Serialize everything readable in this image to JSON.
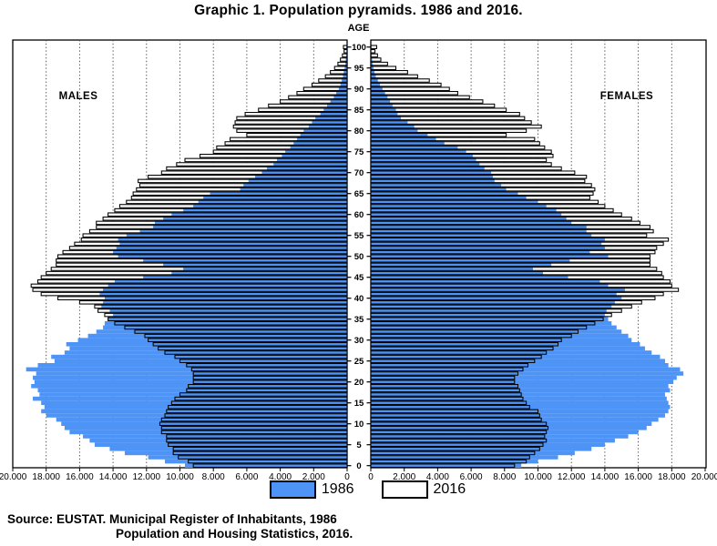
{
  "title": "Graphic 1. Population pyramids. 1986 and 2016.",
  "legend": {
    "items": [
      {
        "label": "1986",
        "swatch": "blue"
      },
      {
        "label": "2016",
        "swatch": "white"
      }
    ]
  },
  "source": {
    "line1": "Source: EUSTAT. Municipal Register of Inhabitants, 1986",
    "line2": "Population and Housing Statistics, 2016."
  },
  "colors": {
    "bar_1986": "#4d94f6",
    "bar_2016_fill": "#ffffff",
    "outline": "#000000",
    "gridline": "#444444"
  },
  "axis": {
    "left_ticks": [
      {
        "label": "20.000",
        "value": 20000
      },
      {
        "label": "18.000",
        "value": 18000
      },
      {
        "label": "16.000",
        "value": 16000
      },
      {
        "label": "14.000",
        "value": 14000
      },
      {
        "label": "12.000",
        "value": 12000
      },
      {
        "label": "10.000",
        "value": 10000
      },
      {
        "label": "8.000",
        "value": 8000
      },
      {
        "label": "6.000",
        "value": 6000
      },
      {
        "label": "4.000",
        "value": 4000
      },
      {
        "label": "2.000",
        "value": 2000
      },
      {
        "label": "0",
        "value": 0
      }
    ],
    "right_ticks": [
      {
        "label": "0",
        "value": 0
      },
      {
        "label": "2.000",
        "value": 2000
      },
      {
        "label": "4.000",
        "value": 4000
      },
      {
        "label": "6.000",
        "value": 6000
      },
      {
        "label": "8.000",
        "value": 8000
      },
      {
        "label": "10.000",
        "value": 10000
      },
      {
        "label": "12.000",
        "value": 12000
      },
      {
        "label": "14.000",
        "value": 14000
      },
      {
        "label": "16.000",
        "value": 16000
      },
      {
        "label": "18.000",
        "value": 18000
      },
      {
        "label": "20.000",
        "value": 20000
      }
    ],
    "age_ticks": [
      {
        "label": "0",
        "value": 0
      },
      {
        "label": "5",
        "value": 5
      },
      {
        "label": "10",
        "value": 10
      },
      {
        "label": "15",
        "value": 15
      },
      {
        "label": "20",
        "value": 20
      },
      {
        "label": "25",
        "value": 25
      },
      {
        "label": "30",
        "value": 30
      },
      {
        "label": "35",
        "value": 35
      },
      {
        "label": "40",
        "value": 40
      },
      {
        "label": "45",
        "value": 45
      },
      {
        "label": "50",
        "value": 50
      },
      {
        "label": "55",
        "value": 55
      },
      {
        "label": "60",
        "value": 60
      },
      {
        "label": "65",
        "value": 65
      },
      {
        "label": "70",
        "value": 70
      },
      {
        "label": "75",
        "value": 75
      },
      {
        "label": "80",
        "value": 80
      },
      {
        "label": "85",
        "value": 85
      },
      {
        "label": "90",
        "value": 90
      },
      {
        "label": "95",
        "value": 95
      },
      {
        "label": "100",
        "value": 100
      }
    ]
  },
  "chart_data": {
    "type": "bar",
    "subtype": "population-pyramid",
    "title": "Graphic 1. Population pyramids. 1986 and 2016.",
    "x_axis": {
      "label_left": "MALES",
      "label_right": "FEMALES",
      "max": 20000,
      "tick_step": 2000
    },
    "y_axis": {
      "label": "AGE",
      "age_min": 0,
      "age_max": 100,
      "tick_step": 5,
      "bar_per_single_year_of_age": true
    },
    "grid": "dashed vertical every 2000",
    "legend_position": "bottom-center",
    "series": [
      {
        "name": "1986",
        "sex": "males",
        "style": "filled-blue",
        "values": [
          9700,
          10900,
          11900,
          13300,
          14200,
          15100,
          15400,
          15800,
          16600,
          16900,
          17100,
          17400,
          18000,
          18300,
          18100,
          18300,
          18800,
          18400,
          18500,
          18900,
          18700,
          18800,
          18600,
          19200,
          18500,
          17500,
          17700,
          16900,
          16600,
          16800,
          16100,
          15500,
          15000,
          14600,
          14500,
          14300,
          14000,
          14200,
          14700,
          14600,
          14500,
          14800,
          14600,
          14300,
          13900,
          12200,
          10500,
          9800,
          11000,
          12200,
          13700,
          14000,
          13800,
          13600,
          13700,
          13200,
          12400,
          11600,
          11500,
          11000,
          10500,
          9800,
          9200,
          8900,
          8600,
          8200,
          6400,
          6200,
          5900,
          5500,
          5100,
          4800,
          4400,
          4200,
          3900,
          3700,
          3400,
          3200,
          3000,
          2800,
          2600,
          2300,
          2100,
          1900,
          1600,
          1400,
          1200,
          1000,
          800,
          650,
          500,
          400,
          320,
          250,
          200,
          150,
          110,
          80,
          60,
          40,
          50
        ]
      },
      {
        "name": "2016",
        "sex": "males",
        "style": "white-outlined",
        "values": [
          9200,
          9500,
          10100,
          10400,
          10400,
          10700,
          10800,
          10800,
          11100,
          11100,
          11200,
          11100,
          10900,
          10800,
          10700,
          10500,
          10300,
          10000,
          9600,
          9500,
          9200,
          9200,
          9200,
          9300,
          9600,
          10000,
          10300,
          10900,
          11300,
          11600,
          11900,
          12100,
          12700,
          13300,
          13900,
          14300,
          14500,
          14900,
          15100,
          16000,
          17300,
          18300,
          18800,
          18900,
          18500,
          18300,
          18000,
          17700,
          17400,
          17400,
          17300,
          17000,
          16600,
          16300,
          15900,
          15800,
          15400,
          15000,
          15000,
          14600,
          14300,
          13900,
          13600,
          13200,
          12900,
          12800,
          12600,
          12400,
          12500,
          11900,
          11100,
          10800,
          10200,
          9700,
          8800,
          8000,
          7800,
          7300,
          7000,
          6000,
          6600,
          6800,
          6700,
          6600,
          6100,
          5300,
          4700,
          4000,
          3500,
          3000,
          2600,
          2100,
          1700,
          1300,
          1000,
          750,
          550,
          400,
          280,
          180,
          220
        ]
      },
      {
        "name": "1986",
        "sex": "females",
        "style": "filled-blue",
        "values": [
          9000,
          10000,
          11200,
          12200,
          13200,
          14000,
          14600,
          15400,
          16000,
          16500,
          16800,
          17200,
          17600,
          17800,
          17900,
          17800,
          17700,
          17600,
          17900,
          17800,
          18100,
          18300,
          18700,
          18500,
          17800,
          17600,
          17300,
          16800,
          16400,
          16100,
          15600,
          15400,
          15000,
          14700,
          14400,
          14200,
          14000,
          14100,
          14400,
          14600,
          15000,
          14700,
          15200,
          14200,
          13700,
          11800,
          10300,
          9700,
          10800,
          11900,
          14200,
          13100,
          14000,
          13800,
          14000,
          13200,
          12900,
          12900,
          12000,
          11700,
          11400,
          11100,
          10500,
          10000,
          9300,
          8800,
          8100,
          7800,
          7400,
          7300,
          7200,
          6800,
          6500,
          6300,
          6100,
          5700,
          5200,
          4400,
          3900,
          3400,
          2800,
          2600,
          2200,
          1800,
          1600,
          1500,
          1300,
          1150,
          1000,
          850,
          700,
          550,
          420,
          300,
          220,
          160,
          120,
          80,
          60,
          40,
          50
        ]
      },
      {
        "name": "2016",
        "sex": "females",
        "style": "white-outlined",
        "values": [
          8600,
          9300,
          9500,
          9800,
          10100,
          10300,
          10500,
          10400,
          10500,
          10600,
          10500,
          10200,
          10100,
          10000,
          9500,
          9300,
          9100,
          9000,
          8900,
          8800,
          8600,
          8600,
          8800,
          9100,
          9400,
          9800,
          10200,
          10500,
          10900,
          11200,
          11400,
          12000,
          12400,
          12900,
          13400,
          13900,
          14400,
          15000,
          15600,
          16200,
          17000,
          17500,
          18400,
          18000,
          17900,
          17500,
          17400,
          17100,
          16700,
          16700,
          16700,
          17000,
          17100,
          17500,
          17800,
          16500,
          16900,
          16700,
          16100,
          15600,
          15000,
          14500,
          14000,
          13600,
          13100,
          13300,
          13400,
          13200,
          12800,
          12900,
          12200,
          11400,
          10800,
          10500,
          10900,
          10800,
          10400,
          10100,
          9800,
          8100,
          9300,
          10200,
          9600,
          9200,
          8900,
          8100,
          7400,
          6700,
          5900,
          5200,
          4700,
          4200,
          3500,
          2800,
          2200,
          1500,
          1000,
          600,
          400,
          250,
          350
        ]
      }
    ]
  }
}
